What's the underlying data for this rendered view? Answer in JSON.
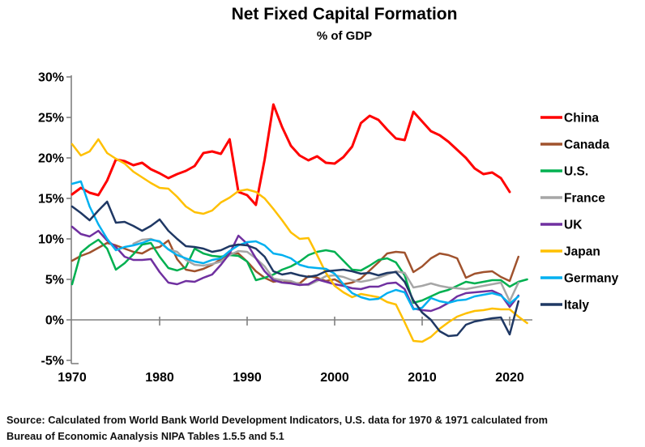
{
  "title": "Net Fixed Capital Formation",
  "subtitle": "% of GDP",
  "source": {
    "line1": "Source:  Calculated from World Bank World Development Indicators, U.S. data for 1970 & 1971 calculated from",
    "line2": "Bureau of Economic Aanalysis NIPA Tables 1.5.5 and 5.1"
  },
  "axis": {
    "ytick_suffix": "%",
    "axis_color": "#808080",
    "text_color": "#000000"
  },
  "chart_data": {
    "type": "line",
    "title": "Net Fixed Capital Formation",
    "subtitle": "% of GDP",
    "xlabel": "",
    "ylabel": "% of GDP",
    "ylim": [
      -5,
      30
    ],
    "yticks": [
      30,
      25,
      20,
      15,
      10,
      5,
      0,
      -5
    ],
    "xticks": [
      1970,
      1980,
      1990,
      2000,
      2010,
      2020
    ],
    "grid": false,
    "zero_line": true,
    "legend_position": "right",
    "x": [
      1970,
      1971,
      1972,
      1973,
      1974,
      1975,
      1976,
      1977,
      1978,
      1979,
      1980,
      1981,
      1982,
      1983,
      1984,
      1985,
      1986,
      1987,
      1988,
      1989,
      1990,
      1991,
      1992,
      1993,
      1994,
      1995,
      1996,
      1997,
      1998,
      1999,
      2000,
      2001,
      2002,
      2003,
      2004,
      2005,
      2006,
      2007,
      2008,
      2009,
      2010,
      2011,
      2012,
      2013,
      2014,
      2015,
      2016,
      2017,
      2018,
      2019,
      2020,
      2021,
      2022
    ],
    "series": [
      {
        "name": "China",
        "color": "#FF0000",
        "values": [
          15.5,
          16.3,
          15.7,
          15.4,
          17.2,
          19.8,
          19.6,
          19.1,
          19.4,
          18.6,
          18.1,
          17.5,
          18.0,
          18.4,
          19.0,
          20.6,
          20.8,
          20.5,
          22.3,
          15.8,
          15.4,
          14.2,
          19.8,
          26.6,
          23.8,
          21.5,
          20.3,
          19.7,
          20.2,
          19.4,
          19.3,
          20.1,
          21.4,
          24.3,
          25.2,
          24.7,
          23.5,
          22.4,
          22.2,
          25.7,
          24.5,
          23.3,
          22.8,
          22.0,
          21.0,
          20.0,
          18.7,
          18.0,
          18.2,
          17.5,
          15.8,
          null,
          null
        ]
      },
      {
        "name": "Canada",
        "color": "#A0522D",
        "values": [
          7.3,
          7.9,
          8.3,
          8.9,
          9.5,
          9.2,
          8.8,
          8.4,
          8.2,
          8.8,
          9.0,
          9.8,
          7.5,
          6.2,
          6.0,
          6.3,
          6.8,
          7.5,
          8.2,
          8.2,
          7.2,
          6.0,
          5.2,
          4.7,
          4.9,
          4.6,
          4.5,
          5.4,
          5.2,
          4.8,
          5.0,
          4.4,
          4.6,
          5.1,
          6.1,
          7.1,
          8.2,
          8.4,
          8.3,
          5.9,
          6.6,
          7.6,
          8.2,
          8.0,
          7.6,
          5.2,
          5.7,
          5.9,
          6.0,
          5.3,
          4.8,
          7.8,
          null
        ]
      },
      {
        "name": "U.S.",
        "color": "#00B050",
        "values": [
          4.4,
          8.3,
          9.2,
          9.9,
          8.8,
          6.2,
          7.0,
          8.1,
          9.3,
          9.5,
          7.8,
          6.4,
          6.1,
          6.5,
          8.8,
          8.2,
          7.9,
          7.8,
          8.0,
          7.9,
          7.2,
          4.9,
          5.2,
          5.6,
          6.2,
          6.6,
          7.2,
          8.0,
          8.4,
          8.6,
          8.4,
          7.3,
          6.2,
          6.1,
          6.7,
          7.4,
          7.6,
          7.1,
          5.5,
          2.1,
          2.4,
          2.9,
          3.4,
          3.7,
          4.2,
          4.7,
          4.5,
          4.7,
          4.9,
          4.9,
          4.1,
          4.7,
          5.0
        ]
      },
      {
        "name": "France",
        "color": "#A6A6A6",
        "values": [
          null,
          null,
          null,
          null,
          null,
          null,
          null,
          9.4,
          9.9,
          10.0,
          9.6,
          8.7,
          8.4,
          7.4,
          6.8,
          6.7,
          6.9,
          7.2,
          8.0,
          8.5,
          8.4,
          7.6,
          6.6,
          5.1,
          4.9,
          4.8,
          4.4,
          4.3,
          4.8,
          5.4,
          5.5,
          5.3,
          4.9,
          4.7,
          4.9,
          5.2,
          5.6,
          6.0,
          5.8,
          4.0,
          4.2,
          4.5,
          4.2,
          4.0,
          3.9,
          3.8,
          4.0,
          4.2,
          4.4,
          4.6,
          2.3,
          4.6,
          null
        ]
      },
      {
        "name": "UK",
        "color": "#7030A0",
        "values": [
          11.5,
          10.6,
          10.3,
          11.0,
          9.8,
          9.0,
          7.8,
          7.4,
          7.4,
          7.5,
          5.9,
          4.6,
          4.4,
          4.8,
          4.7,
          5.2,
          5.6,
          6.8,
          8.2,
          10.4,
          9.4,
          7.6,
          6.0,
          4.9,
          4.6,
          4.5,
          4.3,
          4.4,
          5.0,
          4.7,
          4.4,
          4.2,
          3.9,
          3.8,
          4.1,
          4.1,
          4.5,
          4.6,
          3.8,
          1.4,
          1.2,
          1.1,
          1.5,
          2.1,
          2.9,
          3.3,
          3.4,
          3.5,
          3.6,
          3.1,
          1.6,
          3.0,
          null
        ]
      },
      {
        "name": "Japan",
        "color": "#FFC000",
        "values": [
          21.7,
          20.3,
          20.8,
          22.3,
          20.6,
          19.9,
          19.3,
          18.3,
          17.6,
          16.9,
          16.3,
          16.2,
          15.2,
          14.0,
          13.3,
          13.1,
          13.5,
          14.5,
          15.1,
          15.9,
          16.1,
          15.8,
          15.0,
          13.7,
          12.3,
          10.8,
          10.0,
          10.1,
          8.0,
          5.8,
          4.2,
          3.4,
          2.8,
          3.2,
          3.0,
          2.8,
          2.2,
          1.9,
          -0.3,
          -2.6,
          -2.7,
          -2.1,
          -1.1,
          -0.3,
          0.4,
          0.8,
          1.1,
          1.2,
          1.4,
          1.3,
          1.3,
          0.4,
          -0.4
        ]
      },
      {
        "name": "Germany",
        "color": "#00B0F0",
        "values": [
          16.8,
          17.1,
          14.0,
          11.8,
          10.0,
          8.6,
          9.0,
          9.2,
          9.5,
          9.9,
          9.7,
          8.7,
          8.0,
          7.6,
          7.2,
          7.0,
          7.4,
          7.6,
          8.5,
          9.2,
          9.6,
          9.7,
          9.2,
          8.2,
          8.0,
          7.6,
          6.8,
          6.5,
          6.4,
          6.3,
          5.7,
          4.4,
          3.3,
          2.8,
          2.5,
          2.6,
          3.3,
          3.7,
          3.4,
          1.3,
          1.5,
          2.7,
          2.3,
          2.1,
          2.4,
          2.5,
          2.9,
          3.1,
          3.3,
          3.0,
          2.0,
          2.9,
          null
        ]
      },
      {
        "name": "Italy",
        "color": "#1F3864",
        "values": [
          14.0,
          13.2,
          12.3,
          13.5,
          14.6,
          12.0,
          12.1,
          11.6,
          11.0,
          11.6,
          12.4,
          11.0,
          10.0,
          9.1,
          9.0,
          8.8,
          8.4,
          8.6,
          9.1,
          9.3,
          9.2,
          8.8,
          7.8,
          6.0,
          5.6,
          5.8,
          5.5,
          5.3,
          5.5,
          6.0,
          6.1,
          6.2,
          6.0,
          5.7,
          5.8,
          5.5,
          5.8,
          5.9,
          4.7,
          2.4,
          0.9,
          0.0,
          -1.4,
          -2.0,
          -1.9,
          -0.6,
          -0.2,
          0.0,
          0.2,
          0.3,
          -1.8,
          2.3,
          null
        ]
      }
    ]
  }
}
